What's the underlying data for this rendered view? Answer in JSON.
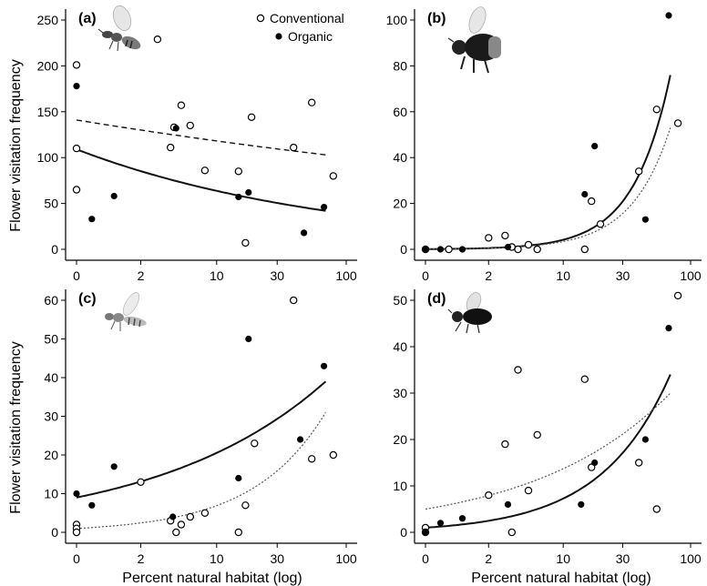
{
  "ylabel": "Flower visitation frequency",
  "xlabel": "Percent natural habitat (log)",
  "legend": {
    "conventional": "Conventional",
    "organic": "Organic"
  },
  "colors": {
    "ink": "#000000",
    "fit_gray": "#555555",
    "insect_wing": "#cfcfcf",
    "wasp_body": "#7a7a7a"
  },
  "chart_data": [
    {
      "type": "scatter",
      "panel_label": "(a)",
      "insect_icon": "wasp-icon",
      "x_scale": "log",
      "xticks": [
        "0",
        "2",
        "10",
        "30",
        "100"
      ],
      "ylim": [
        0,
        250
      ],
      "yticks": [
        0,
        50,
        100,
        150,
        200,
        250
      ],
      "legend_position": "top-center",
      "series": [
        {
          "name": "Conventional",
          "marker": "open-circle",
          "points": [
            [
              0,
              201
            ],
            [
              0,
              110
            ],
            [
              0,
              65
            ],
            [
              3,
              229
            ],
            [
              4,
              111
            ],
            [
              4.3,
              133
            ],
            [
              5,
              157
            ],
            [
              6,
              135
            ],
            [
              8,
              86
            ],
            [
              15,
              85
            ],
            [
              17,
              7
            ],
            [
              19,
              144
            ],
            [
              40,
              111
            ],
            [
              55,
              160
            ],
            [
              80,
              80
            ]
          ]
        },
        {
          "name": "Organic",
          "marker": "filled-circle",
          "points": [
            [
              0,
              178
            ],
            [
              0.3,
              33
            ],
            [
              0.9,
              58
            ],
            [
              4.5,
              132
            ],
            [
              15,
              57
            ],
            [
              18,
              62
            ],
            [
              48,
              18
            ],
            [
              68,
              46
            ]
          ]
        }
      ],
      "fits": [
        {
          "series": "Conventional",
          "style": "dashed",
          "curve": [
            [
              0,
              141
            ],
            [
              70,
              103
            ]
          ]
        },
        {
          "series": "Organic",
          "style": "solid",
          "curve": [
            [
              0,
              109
            ],
            [
              70,
              42
            ]
          ]
        }
      ]
    },
    {
      "type": "scatter",
      "panel_label": "(b)",
      "insect_icon": "bumblebee-icon",
      "x_scale": "log",
      "xticks": [
        "0",
        "2",
        "10",
        "30",
        "100"
      ],
      "ylim": [
        0,
        100
      ],
      "yticks": [
        0,
        20,
        40,
        60,
        80,
        100
      ],
      "series": [
        {
          "name": "Conventional",
          "marker": "open-circle",
          "points": [
            [
              0,
              0
            ],
            [
              0.5,
              0
            ],
            [
              2,
              5
            ],
            [
              3,
              6
            ],
            [
              3.5,
              1
            ],
            [
              4,
              0
            ],
            [
              5,
              2
            ],
            [
              6,
              0
            ],
            [
              15,
              0
            ],
            [
              17,
              21
            ],
            [
              20,
              11
            ],
            [
              40,
              34
            ],
            [
              55,
              61
            ],
            [
              80,
              55
            ]
          ]
        },
        {
          "name": "Organic",
          "marker": "filled-circle",
          "points": [
            [
              0,
              0
            ],
            [
              0.3,
              0
            ],
            [
              0.9,
              0
            ],
            [
              3.2,
              1
            ],
            [
              15,
              24
            ],
            [
              18,
              45
            ],
            [
              45,
              13
            ],
            [
              68,
              102
            ]
          ]
        }
      ],
      "fits": [
        {
          "series": "Organic",
          "style": "solid",
          "curve": [
            [
              0,
              0
            ],
            [
              70,
              76
            ]
          ]
        },
        {
          "series": "Conventional",
          "style": "dotted",
          "curve": [
            [
              0,
              0
            ],
            [
              70,
              53
            ]
          ]
        }
      ]
    },
    {
      "type": "scatter",
      "panel_label": "(c)",
      "insect_icon": "hoverfly-icon",
      "x_scale": "log",
      "xticks": [
        "0",
        "2",
        "10",
        "30",
        "100"
      ],
      "ylim": [
        0,
        60
      ],
      "yticks": [
        0,
        10,
        20,
        30,
        40,
        50,
        60
      ],
      "series": [
        {
          "name": "Conventional",
          "marker": "open-circle",
          "points": [
            [
              0,
              2
            ],
            [
              0,
              1
            ],
            [
              0,
              0
            ],
            [
              2,
              13
            ],
            [
              4,
              3
            ],
            [
              4.5,
              0
            ],
            [
              5,
              2
            ],
            [
              6,
              4
            ],
            [
              8,
              5
            ],
            [
              15,
              0
            ],
            [
              17,
              7
            ],
            [
              20,
              23
            ],
            [
              40,
              60
            ],
            [
              55,
              19
            ],
            [
              80,
              20
            ]
          ]
        },
        {
          "name": "Organic",
          "marker": "filled-circle",
          "points": [
            [
              0,
              10
            ],
            [
              0.3,
              7
            ],
            [
              0.9,
              17
            ],
            [
              4.2,
              4
            ],
            [
              15,
              14
            ],
            [
              18,
              50
            ],
            [
              45,
              24
            ],
            [
              68,
              43
            ]
          ]
        }
      ],
      "fits": [
        {
          "series": "Organic",
          "style": "solid",
          "curve": [
            [
              0,
              9
            ],
            [
              70,
              39
            ]
          ]
        },
        {
          "series": "Conventional",
          "style": "dotted",
          "curve": [
            [
              0,
              1
            ],
            [
              70,
              31
            ]
          ]
        }
      ]
    },
    {
      "type": "scatter",
      "panel_label": "(d)",
      "insect_icon": "fly-icon",
      "x_scale": "log",
      "xticks": [
        "0",
        "2",
        "10",
        "30",
        "100"
      ],
      "ylim": [
        0,
        50
      ],
      "yticks": [
        0,
        10,
        20,
        30,
        40,
        50
      ],
      "series": [
        {
          "name": "Conventional",
          "marker": "open-circle",
          "points": [
            [
              0,
              1
            ],
            [
              0,
              0
            ],
            [
              2,
              8
            ],
            [
              3,
              19
            ],
            [
              3.5,
              0
            ],
            [
              4,
              35
            ],
            [
              5,
              9
            ],
            [
              6,
              21
            ],
            [
              15,
              33
            ],
            [
              17,
              14
            ],
            [
              40,
              15
            ],
            [
              55,
              5
            ],
            [
              80,
              51
            ]
          ]
        },
        {
          "name": "Organic",
          "marker": "filled-circle",
          "points": [
            [
              0,
              0
            ],
            [
              0.3,
              2
            ],
            [
              0.9,
              3
            ],
            [
              3.2,
              6
            ],
            [
              14,
              6
            ],
            [
              18,
              15
            ],
            [
              45,
              20
            ],
            [
              68,
              44
            ]
          ]
        }
      ],
      "fits": [
        {
          "series": "Organic",
          "style": "solid",
          "curve": [
            [
              0,
              1
            ],
            [
              70,
              34
            ]
          ]
        },
        {
          "series": "Conventional",
          "style": "dotted",
          "curve": [
            [
              0,
              5
            ],
            [
              70,
              30
            ]
          ]
        }
      ]
    }
  ]
}
